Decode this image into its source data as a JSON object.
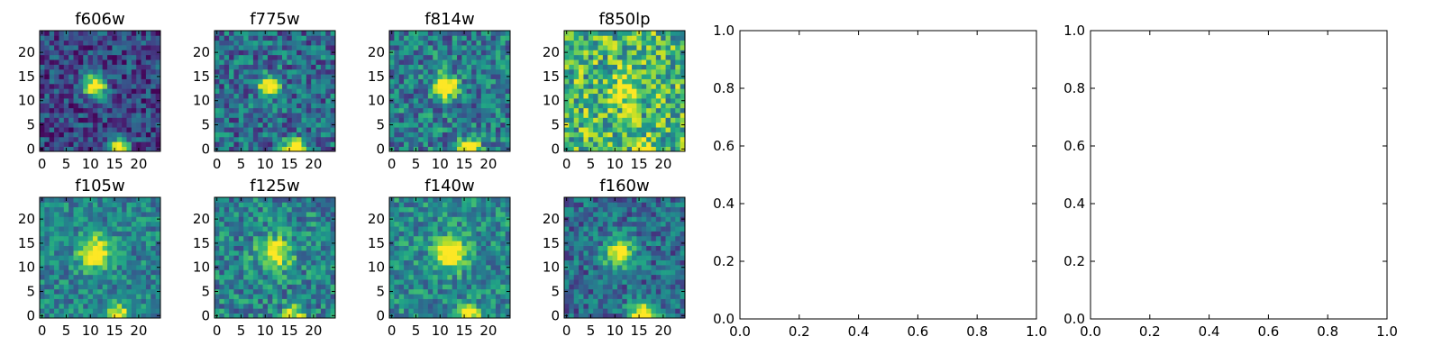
{
  "figure": {
    "background": "#ffffff",
    "colormap": "viridis"
  },
  "chart_data": [
    {
      "type": "heatmap",
      "title": "f606w",
      "grid": "25x25 pixel cutout",
      "xticks": [
        "0",
        "5",
        "10",
        "15",
        "20"
      ],
      "yticks": [
        "0",
        "5",
        "10",
        "15",
        "20"
      ],
      "xlim": [
        -0.5,
        24.5
      ],
      "ylim": [
        -0.5,
        24.5
      ],
      "sources": [
        {
          "x": 11,
          "y": 13,
          "amplitude": 1.0,
          "sigma": 1.6
        },
        {
          "x": 16,
          "y": 0,
          "amplitude": 1.0,
          "sigma": 1.4
        }
      ],
      "background_level": 0.22,
      "noise_level": 0.22
    },
    {
      "type": "heatmap",
      "title": "f775w",
      "grid": "25x25 pixel cutout",
      "xticks": [
        "0",
        "5",
        "10",
        "15",
        "20"
      ],
      "yticks": [
        "0",
        "5",
        "10",
        "15",
        "20"
      ],
      "xlim": [
        -0.5,
        24.5
      ],
      "ylim": [
        -0.5,
        24.5
      ],
      "sources": [
        {
          "x": 11,
          "y": 13,
          "amplitude": 0.95,
          "sigma": 1.5
        },
        {
          "x": 16,
          "y": 0,
          "amplitude": 0.95,
          "sigma": 1.4
        }
      ],
      "background_level": 0.36,
      "noise_level": 0.26
    },
    {
      "type": "heatmap",
      "title": "f814w",
      "grid": "25x25 pixel cutout",
      "xticks": [
        "0",
        "5",
        "10",
        "15",
        "20"
      ],
      "yticks": [
        "0",
        "5",
        "10",
        "15",
        "20"
      ],
      "xlim": [
        -0.5,
        24.5
      ],
      "ylim": [
        -0.5,
        24.5
      ],
      "sources": [
        {
          "x": 11,
          "y": 13,
          "amplitude": 0.95,
          "sigma": 1.6
        },
        {
          "x": 16,
          "y": 0,
          "amplitude": 0.95,
          "sigma": 1.4
        }
      ],
      "background_level": 0.42,
      "noise_level": 0.26
    },
    {
      "type": "heatmap",
      "title": "f850lp",
      "grid": "25x25 pixel cutout",
      "xticks": [
        "0",
        "5",
        "10",
        "15",
        "20"
      ],
      "yticks": [
        "0",
        "5",
        "10",
        "15",
        "20"
      ],
      "xlim": [
        -0.5,
        24.5
      ],
      "ylim": [
        -0.5,
        24.5
      ],
      "sources": [
        {
          "x": 12,
          "y": 12,
          "amplitude": 0.4,
          "sigma": 2.2
        },
        {
          "x": 16,
          "y": 0,
          "amplitude": 0.35,
          "sigma": 1.4
        }
      ],
      "background_level": 0.66,
      "noise_level": 0.32
    },
    {
      "type": "heatmap",
      "title": "f105w",
      "grid": "25x25 pixel cutout",
      "xticks": [
        "0",
        "5",
        "10",
        "15",
        "20"
      ],
      "yticks": [
        "0",
        "5",
        "10",
        "15",
        "20"
      ],
      "xlim": [
        -0.5,
        24.5
      ],
      "ylim": [
        -0.5,
        24.5
      ],
      "sources": [
        {
          "x": 11,
          "y": 13,
          "amplitude": 0.7,
          "sigma": 2.3
        },
        {
          "x": 16,
          "y": 0,
          "amplitude": 0.6,
          "sigma": 1.6
        }
      ],
      "background_level": 0.45,
      "noise_level": 0.2
    },
    {
      "type": "heatmap",
      "title": "f125w",
      "grid": "25x25 pixel cutout",
      "xticks": [
        "0",
        "5",
        "10",
        "15",
        "20"
      ],
      "yticks": [
        "0",
        "5",
        "10",
        "15",
        "20"
      ],
      "xlim": [
        -0.5,
        24.5
      ],
      "ylim": [
        -0.5,
        24.5
      ],
      "sources": [
        {
          "x": 12,
          "y": 13,
          "amplitude": 0.65,
          "sigma": 2.3
        },
        {
          "x": 16,
          "y": 0,
          "amplitude": 0.55,
          "sigma": 1.6
        }
      ],
      "background_level": 0.45,
      "noise_level": 0.24
    },
    {
      "type": "heatmap",
      "title": "f140w",
      "grid": "25x25 pixel cutout",
      "xticks": [
        "0",
        "5",
        "10",
        "15",
        "20"
      ],
      "yticks": [
        "0",
        "5",
        "10",
        "15",
        "20"
      ],
      "xlim": [
        -0.5,
        24.5
      ],
      "ylim": [
        -0.5,
        24.5
      ],
      "sources": [
        {
          "x": 12,
          "y": 13,
          "amplitude": 0.75,
          "sigma": 2.2
        },
        {
          "x": 16,
          "y": 0,
          "amplitude": 0.6,
          "sigma": 1.6
        }
      ],
      "background_level": 0.48,
      "noise_level": 0.22
    },
    {
      "type": "heatmap",
      "title": "f160w",
      "grid": "25x25 pixel cutout",
      "xticks": [
        "0",
        "5",
        "10",
        "15",
        "20"
      ],
      "yticks": [
        "0",
        "5",
        "10",
        "15",
        "20"
      ],
      "xlim": [
        -0.5,
        24.5
      ],
      "ylim": [
        -0.5,
        24.5
      ],
      "sources": [
        {
          "x": 11,
          "y": 13,
          "amplitude": 0.7,
          "sigma": 2.2
        },
        {
          "x": 16,
          "y": 0,
          "amplitude": 0.8,
          "sigma": 2.0
        }
      ],
      "background_level": 0.35,
      "noise_level": 0.22
    },
    {
      "type": "line",
      "title": "",
      "series": [],
      "xlim": [
        0.0,
        1.0
      ],
      "ylim": [
        0.0,
        1.0
      ],
      "xticks": [
        "0.0",
        "0.2",
        "0.4",
        "0.6",
        "0.8",
        "1.0"
      ],
      "yticks": [
        "0.0",
        "0.2",
        "0.4",
        "0.6",
        "0.8",
        "1.0"
      ],
      "grid": false
    },
    {
      "type": "line",
      "title": "",
      "series": [],
      "xlim": [
        0.0,
        1.0
      ],
      "ylim": [
        0.0,
        1.0
      ],
      "xticks": [
        "0.0",
        "0.2",
        "0.4",
        "0.6",
        "0.8",
        "1.0"
      ],
      "yticks": [
        "0.0",
        "0.2",
        "0.4",
        "0.6",
        "0.8",
        "1.0"
      ],
      "grid": false
    }
  ]
}
